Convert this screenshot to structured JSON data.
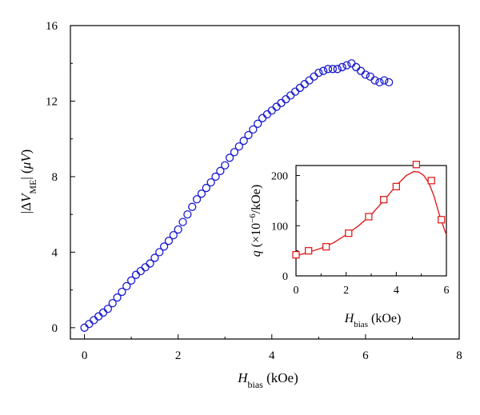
{
  "chart_data": [
    {
      "type": "scatter",
      "xlabel": "H_bias (kOe)",
      "ylabel": "|ΔV_ME| (μV)",
      "xlim": [
        -0.3,
        8
      ],
      "ylim": [
        -0.6,
        16
      ],
      "xticks": [
        "0",
        "2",
        "4",
        "6",
        "8"
      ],
      "yticks": [
        "0",
        "4",
        "8",
        "12",
        "16"
      ],
      "marker": "open-circle",
      "color": "#1a1ad0",
      "x": [
        0.0,
        0.1,
        0.2,
        0.3,
        0.4,
        0.5,
        0.6,
        0.7,
        0.8,
        0.9,
        1.0,
        1.1,
        1.2,
        1.3,
        1.4,
        1.5,
        1.6,
        1.7,
        1.8,
        1.9,
        2.0,
        2.1,
        2.2,
        2.3,
        2.4,
        2.5,
        2.6,
        2.7,
        2.8,
        2.9,
        3.0,
        3.1,
        3.2,
        3.3,
        3.4,
        3.5,
        3.6,
        3.7,
        3.8,
        3.9,
        4.0,
        4.1,
        4.2,
        4.3,
        4.4,
        4.5,
        4.6,
        4.7,
        4.8,
        4.9,
        5.0,
        5.1,
        5.2,
        5.3,
        5.4,
        5.5,
        5.6,
        5.7,
        5.8,
        5.9,
        6.0,
        6.1,
        6.2,
        6.3,
        6.4,
        6.5
      ],
      "y": [
        0.0,
        0.2,
        0.4,
        0.6,
        0.8,
        1.0,
        1.3,
        1.6,
        1.9,
        2.2,
        2.5,
        2.8,
        3.0,
        3.2,
        3.4,
        3.7,
        4.0,
        4.3,
        4.6,
        4.9,
        5.2,
        5.6,
        6.0,
        6.4,
        6.8,
        7.1,
        7.4,
        7.7,
        8.0,
        8.3,
        8.6,
        9.0,
        9.3,
        9.6,
        9.9,
        10.2,
        10.5,
        10.8,
        11.1,
        11.3,
        11.5,
        11.7,
        11.9,
        12.1,
        12.3,
        12.5,
        12.7,
        12.9,
        13.1,
        13.3,
        13.5,
        13.6,
        13.7,
        13.7,
        13.7,
        13.8,
        13.9,
        14.0,
        13.8,
        13.6,
        13.4,
        13.3,
        13.1,
        13.0,
        13.1,
        13.0
      ]
    },
    {
      "type": "line",
      "xlabel": "H_bias (kOe)",
      "ylabel": "q (×10^−6/kOe)",
      "xlim": [
        0,
        6
      ],
      "ylim": [
        0,
        220
      ],
      "xticks": [
        "0",
        "2",
        "4",
        "6"
      ],
      "yticks": [
        "0",
        "100",
        "200"
      ],
      "marker": "open-square",
      "color": "#e02020",
      "x": [
        0.0,
        0.5,
        1.2,
        2.1,
        2.9,
        3.5,
        4.0,
        4.8,
        5.4,
        5.8
      ],
      "y": [
        42,
        50,
        58,
        85,
        118,
        152,
        178,
        222,
        190,
        112
      ],
      "fit_x": [
        0.0,
        0.5,
        1.0,
        1.5,
        2.0,
        2.5,
        3.0,
        3.5,
        4.0,
        4.4,
        4.7,
        4.9,
        5.1,
        5.3,
        5.5,
        5.7,
        5.9,
        6.0
      ],
      "fit_y": [
        40,
        47,
        55,
        66,
        82,
        100,
        122,
        150,
        180,
        200,
        208,
        207,
        200,
        185,
        160,
        125,
        95,
        82
      ]
    }
  ]
}
